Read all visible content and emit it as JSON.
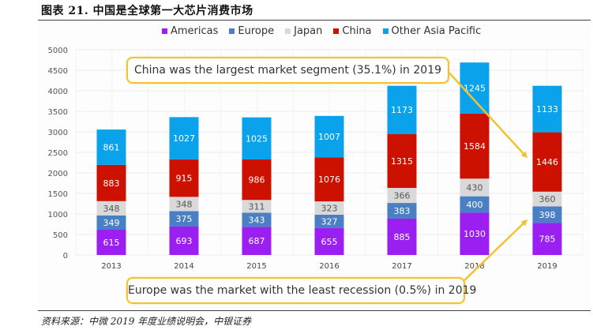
{
  "figure": {
    "title": "图表 21. 中国是全球第一大芯片消费市场",
    "source": "资料来源：中微 2019 年度业绩说明会，中银证券"
  },
  "colors": {
    "Americas": "#9b1ff0",
    "Europe": "#4a7fc4",
    "Japan": "#d9d9d9",
    "China": "#cc1100",
    "Other Asia Pacific": "#0aa2ea",
    "callout": "#f2c230"
  },
  "annotations": {
    "china": "China was the largest market segment (35.1%) in 2019",
    "europe": "Europe was the market with the least recession (0.5%) in 2019"
  },
  "chart_data": {
    "type": "bar",
    "stacked": true,
    "title": "",
    "xlabel": "",
    "ylabel": "",
    "categories": [
      "2013",
      "2014",
      "2015",
      "2016",
      "2017",
      "2018",
      "2019"
    ],
    "series": [
      {
        "name": "Americas",
        "values": [
          615,
          693,
          687,
          655,
          885,
          1030,
          785
        ]
      },
      {
        "name": "Europe",
        "values": [
          349,
          375,
          343,
          327,
          383,
          400,
          398
        ]
      },
      {
        "name": "Japan",
        "values": [
          348,
          348,
          311,
          323,
          366,
          430,
          360
        ]
      },
      {
        "name": "China",
        "values": [
          883,
          915,
          986,
          1076,
          1315,
          1584,
          1446
        ]
      },
      {
        "name": "Other Asia Pacific",
        "values": [
          861,
          1027,
          1025,
          1007,
          1173,
          1245,
          1133
        ]
      }
    ],
    "ylim": [
      0,
      5000
    ],
    "yticks": [
      0,
      500,
      1000,
      1500,
      2000,
      2500,
      3000,
      3500,
      4000,
      4500,
      5000
    ],
    "grid": true,
    "legend": "top",
    "data_labels": true
  }
}
